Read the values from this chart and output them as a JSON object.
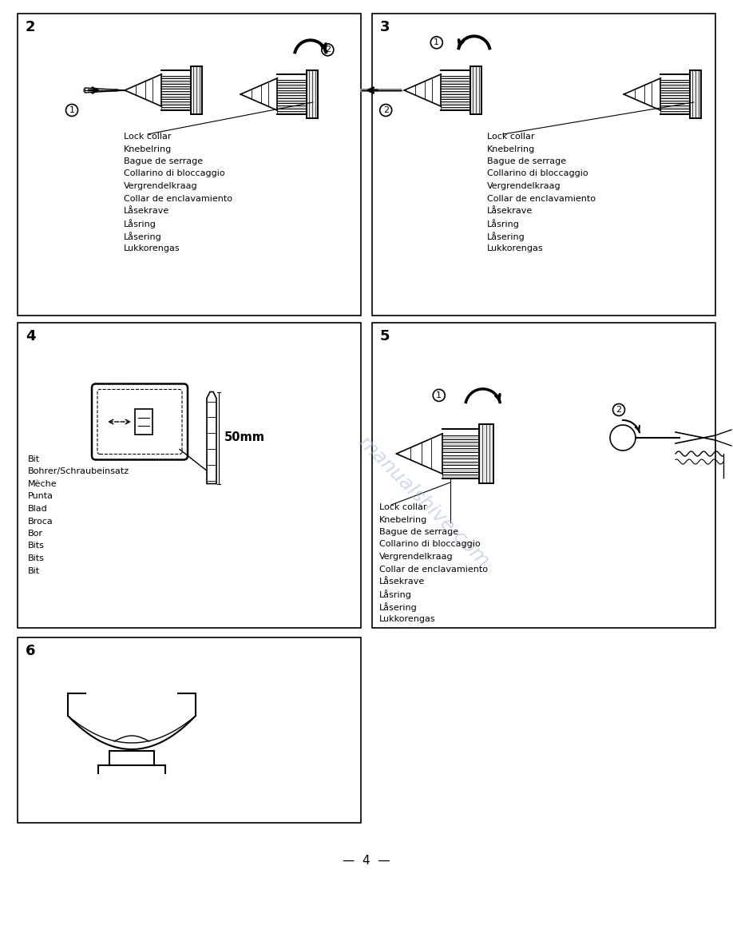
{
  "bg_color": "#ffffff",
  "watermark": "manualshive.com",
  "watermark_color": "#aabbdd",
  "lock_collar_labels": [
    "Lock collar",
    "Knebelring",
    "Bague de serrage",
    "Collarino di bloccaggio",
    "Vergrendelkraag",
    "Collar de enclavamiento",
    "Låsekrave",
    "Låsring",
    "Låsering",
    "Lukkorengas"
  ],
  "bit_labels": [
    "Bit",
    "Bohrer/Schraubeinsatz",
    "Mèche",
    "Punta",
    "Blad",
    "Broca",
    "Bor",
    "Bits",
    "Bits",
    "Bit"
  ],
  "panel2": [
    22,
    793,
    430,
    378
  ],
  "panel3": [
    466,
    793,
    430,
    378
  ],
  "panel4": [
    22,
    402,
    430,
    382
  ],
  "panel5": [
    466,
    402,
    430,
    382
  ],
  "panel6": [
    22,
    158,
    430,
    232
  ],
  "label_fs": 8.0,
  "panel_num_fs": 13
}
